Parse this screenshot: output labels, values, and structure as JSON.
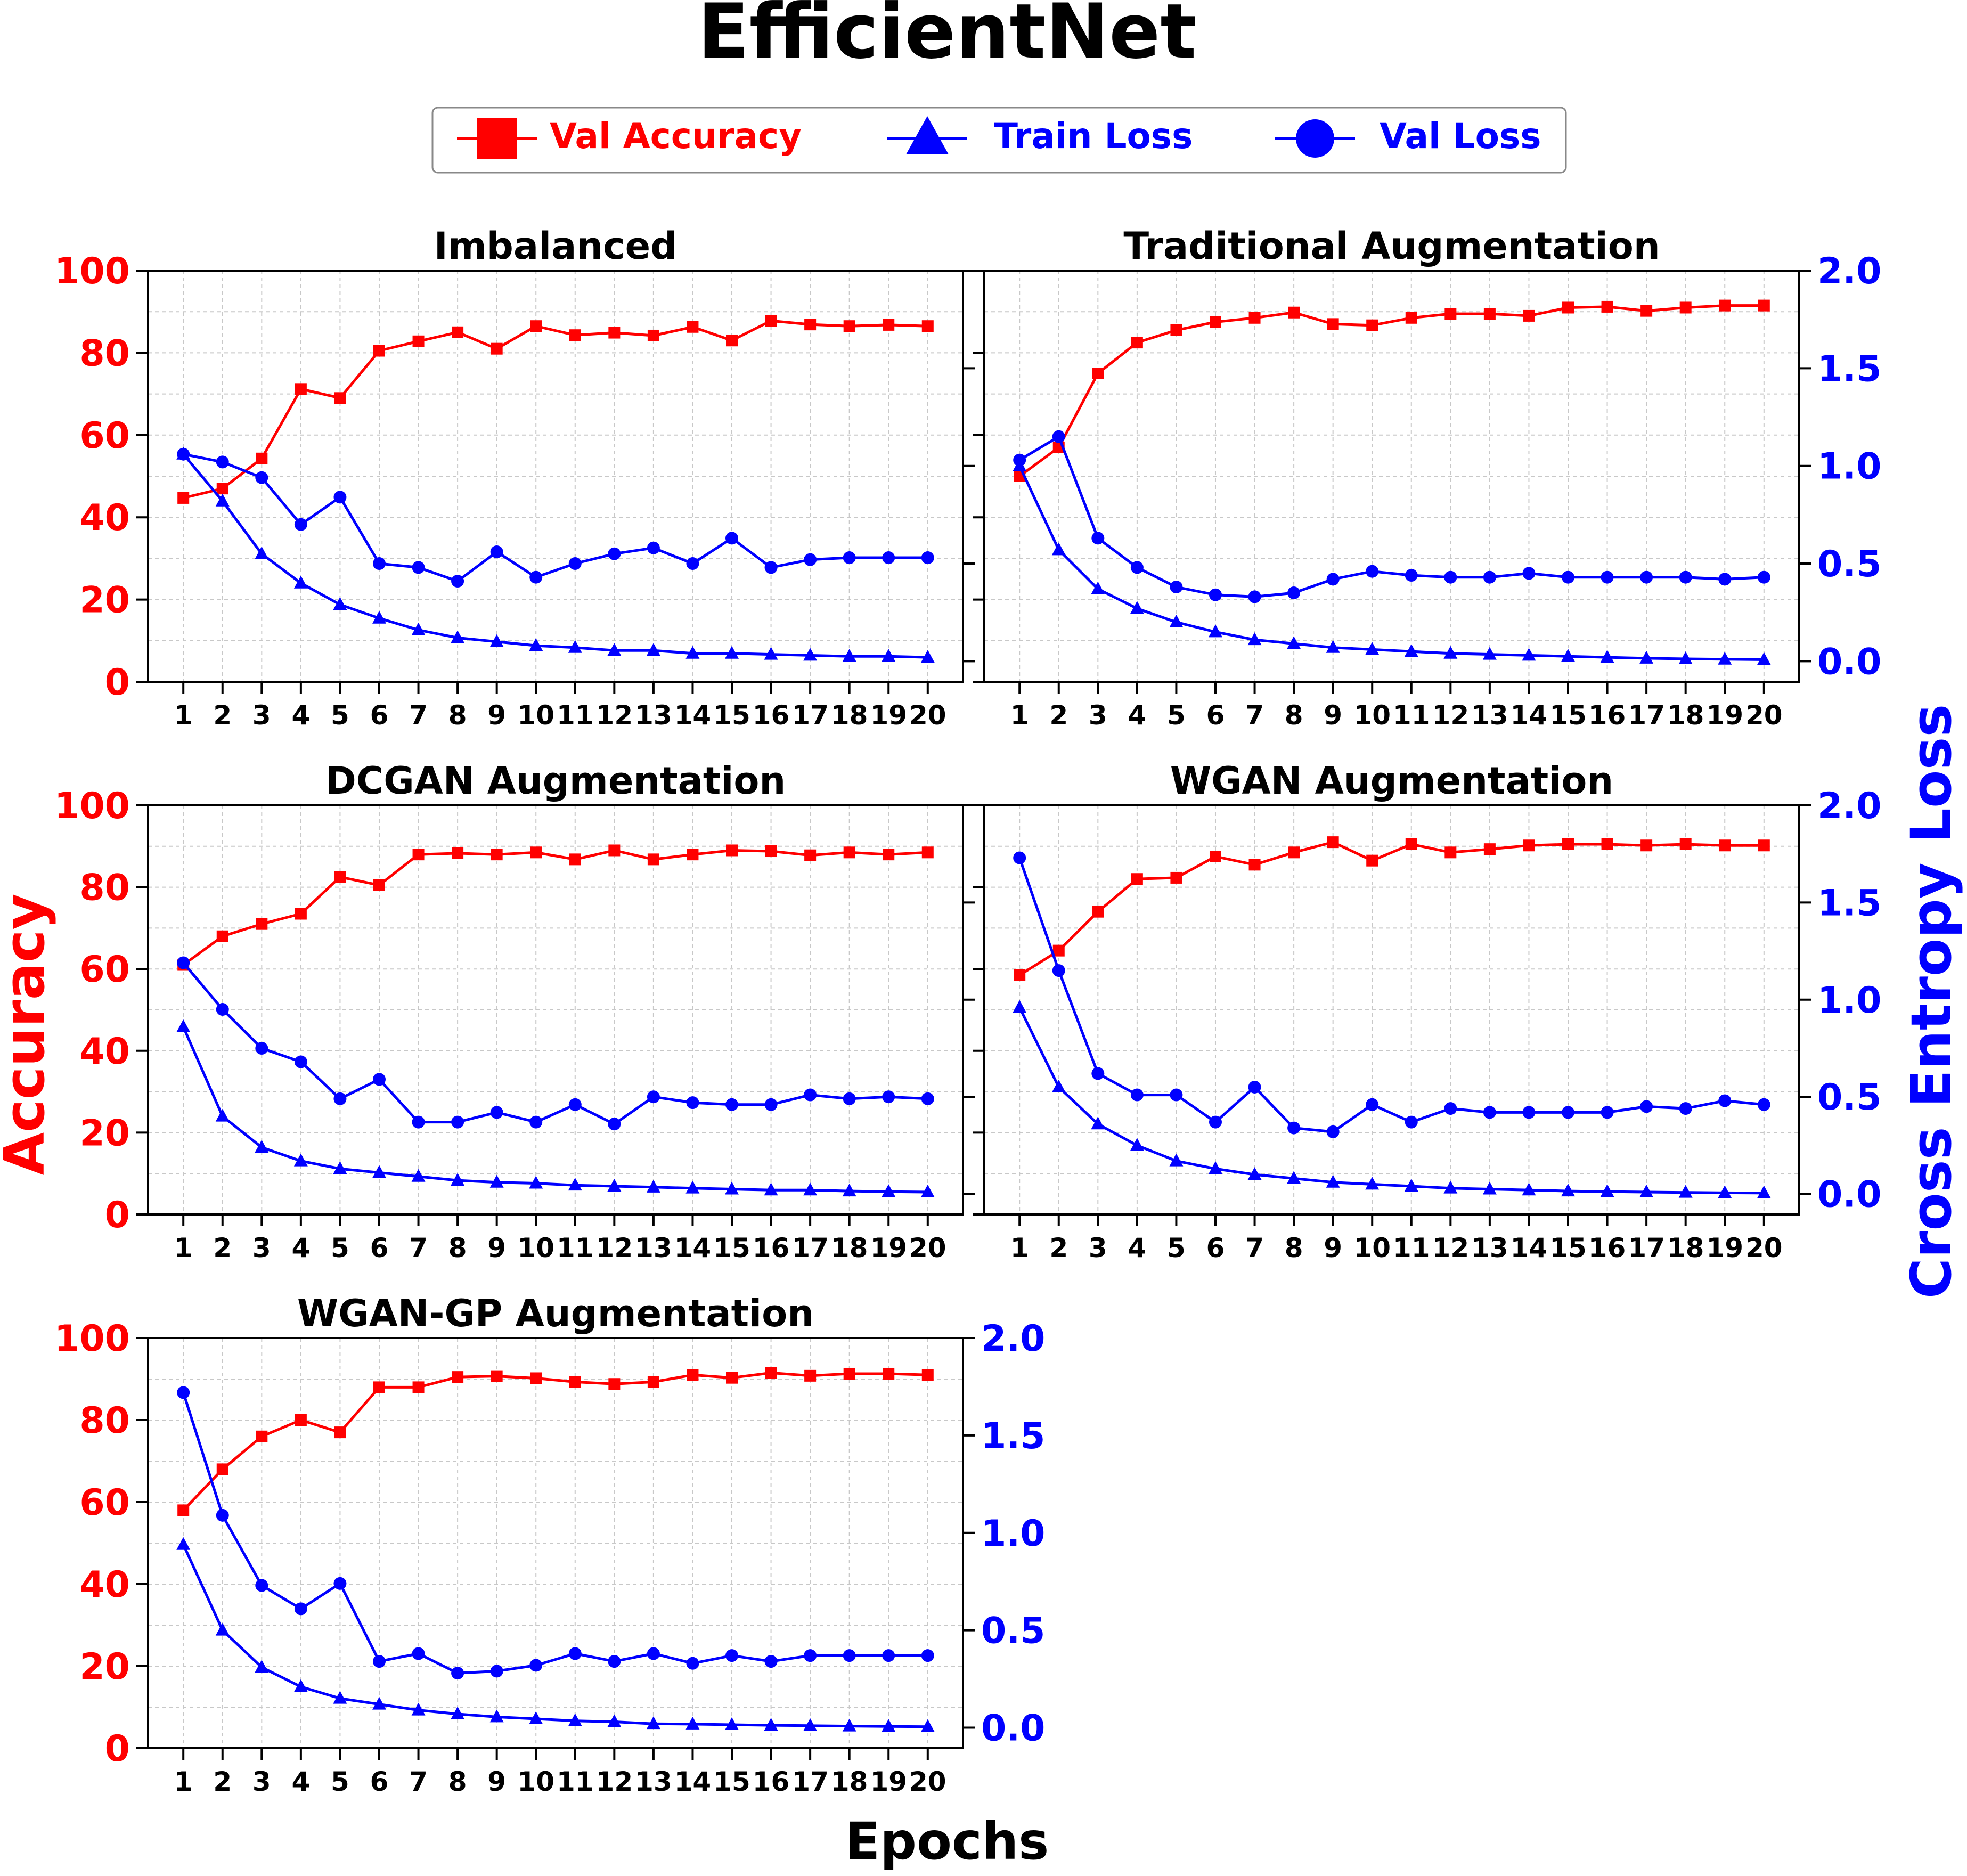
{
  "figure": {
    "title": "EfficientNet",
    "xlabel": "Epochs",
    "ylabel_left": "Accuracy",
    "ylabel_right": "Cross Entropy Loss"
  },
  "legend": {
    "placement": "top-center",
    "entries": [
      {
        "label": "Val Accuracy",
        "color": "#ff0000",
        "marker": "square"
      },
      {
        "label": "Train Loss",
        "color": "#0000ff",
        "marker": "triangle"
      },
      {
        "label": "Val Loss",
        "color": "#0000ff",
        "marker": "circle"
      }
    ]
  },
  "colors": {
    "accuracy": "#ff0000",
    "loss": "#0000ff",
    "text": "#000000",
    "grid": "#b0b0b0"
  },
  "chart_data": [
    {
      "type": "line",
      "title": "Imbalanced",
      "x": [
        1,
        2,
        3,
        4,
        5,
        6,
        7,
        8,
        9,
        10,
        11,
        12,
        13,
        14,
        15,
        16,
        17,
        18,
        19,
        20
      ],
      "ylim_left": [
        0,
        100
      ],
      "ylim_right": [
        0,
        2.0
      ],
      "left_ticks_shown": true,
      "right_ticks_shown": false,
      "grid": true,
      "series": [
        {
          "name": "Val Accuracy",
          "axis": "left",
          "values": [
            44.7,
            47.0,
            54.3,
            71.2,
            69.0,
            80.5,
            82.8,
            85.0,
            81.0,
            86.5,
            84.3,
            84.9,
            84.2,
            86.3,
            83.0,
            87.8,
            86.9,
            86.5,
            86.8,
            86.5
          ]
        },
        {
          "name": "Train Loss",
          "axis": "right",
          "values": [
            1.06,
            0.82,
            0.55,
            0.4,
            0.29,
            0.22,
            0.16,
            0.12,
            0.1,
            0.08,
            0.07,
            0.055,
            0.055,
            0.04,
            0.04,
            0.035,
            0.03,
            0.025,
            0.025,
            0.02
          ]
        },
        {
          "name": "Val Loss",
          "axis": "right",
          "values": [
            1.06,
            1.02,
            0.94,
            0.7,
            0.84,
            0.5,
            0.48,
            0.41,
            0.56,
            0.43,
            0.5,
            0.55,
            0.58,
            0.5,
            0.63,
            0.48,
            0.52,
            0.53,
            0.53,
            0.53
          ]
        }
      ]
    },
    {
      "type": "line",
      "title": "Traditional Augmentation",
      "x": [
        1,
        2,
        3,
        4,
        5,
        6,
        7,
        8,
        9,
        10,
        11,
        12,
        13,
        14,
        15,
        16,
        17,
        18,
        19,
        20
      ],
      "ylim_left": [
        0,
        100
      ],
      "ylim_right": [
        0,
        2.0
      ],
      "left_ticks_shown": false,
      "right_ticks_shown": true,
      "grid": true,
      "series": [
        {
          "name": "Val Accuracy",
          "axis": "left",
          "values": [
            50.0,
            57.0,
            75.0,
            82.5,
            85.5,
            87.5,
            88.5,
            89.8,
            87.0,
            86.7,
            88.5,
            89.5,
            89.5,
            89.0,
            91.0,
            91.2,
            90.2,
            91.0,
            91.5,
            91.5
          ]
        },
        {
          "name": "Train Loss",
          "axis": "right",
          "values": [
            1.0,
            0.57,
            0.37,
            0.27,
            0.2,
            0.15,
            0.11,
            0.09,
            0.07,
            0.06,
            0.05,
            0.04,
            0.035,
            0.03,
            0.025,
            0.02,
            0.015,
            0.012,
            0.01,
            0.008
          ]
        },
        {
          "name": "Val Loss",
          "axis": "right",
          "values": [
            1.03,
            1.15,
            0.63,
            0.48,
            0.38,
            0.34,
            0.33,
            0.35,
            0.42,
            0.46,
            0.44,
            0.43,
            0.43,
            0.45,
            0.43,
            0.43,
            0.43,
            0.43,
            0.42,
            0.43
          ]
        }
      ]
    },
    {
      "type": "line",
      "title": "DCGAN Augmentation",
      "x": [
        1,
        2,
        3,
        4,
        5,
        6,
        7,
        8,
        9,
        10,
        11,
        12,
        13,
        14,
        15,
        16,
        17,
        18,
        19,
        20
      ],
      "ylim_left": [
        0,
        100
      ],
      "ylim_right": [
        0,
        2.0
      ],
      "left_ticks_shown": true,
      "right_ticks_shown": false,
      "grid": true,
      "series": [
        {
          "name": "Val Accuracy",
          "axis": "left",
          "values": [
            61.0,
            68.0,
            71.0,
            73.5,
            82.5,
            80.5,
            88.0,
            88.3,
            88.0,
            88.5,
            86.8,
            89.0,
            86.8,
            88.0,
            89.0,
            88.8,
            87.8,
            88.5,
            88.0,
            88.5
          ]
        },
        {
          "name": "Train Loss",
          "axis": "right",
          "values": [
            0.86,
            0.4,
            0.24,
            0.17,
            0.13,
            0.11,
            0.09,
            0.07,
            0.06,
            0.055,
            0.045,
            0.04,
            0.035,
            0.03,
            0.025,
            0.02,
            0.02,
            0.015,
            0.012,
            0.01
          ]
        },
        {
          "name": "Val Loss",
          "axis": "right",
          "values": [
            1.19,
            0.95,
            0.75,
            0.68,
            0.49,
            0.59,
            0.37,
            0.37,
            0.42,
            0.37,
            0.46,
            0.36,
            0.5,
            0.47,
            0.46,
            0.46,
            0.51,
            0.49,
            0.5,
            0.49
          ]
        }
      ]
    },
    {
      "type": "line",
      "title": "WGAN Augmentation",
      "x": [
        1,
        2,
        3,
        4,
        5,
        6,
        7,
        8,
        9,
        10,
        11,
        12,
        13,
        14,
        15,
        16,
        17,
        18,
        19,
        20
      ],
      "ylim_left": [
        0,
        100
      ],
      "ylim_right": [
        0,
        2.0
      ],
      "left_ticks_shown": false,
      "right_ticks_shown": true,
      "grid": true,
      "series": [
        {
          "name": "Val Accuracy",
          "axis": "left",
          "values": [
            58.5,
            64.5,
            74.0,
            82.0,
            82.3,
            87.5,
            85.5,
            88.5,
            91.0,
            86.5,
            90.5,
            88.5,
            89.3,
            90.2,
            90.5,
            90.5,
            90.2,
            90.5,
            90.2,
            90.2
          ]
        },
        {
          "name": "Train Loss",
          "axis": "right",
          "values": [
            0.96,
            0.55,
            0.36,
            0.25,
            0.17,
            0.13,
            0.1,
            0.08,
            0.06,
            0.05,
            0.04,
            0.03,
            0.025,
            0.02,
            0.015,
            0.012,
            0.01,
            0.008,
            0.006,
            0.005
          ]
        },
        {
          "name": "Val Loss",
          "axis": "right",
          "values": [
            1.73,
            1.15,
            0.62,
            0.51,
            0.51,
            0.37,
            0.55,
            0.34,
            0.32,
            0.46,
            0.37,
            0.44,
            0.42,
            0.42,
            0.42,
            0.42,
            0.45,
            0.44,
            0.48,
            0.46
          ]
        }
      ]
    },
    {
      "type": "line",
      "title": "WGAN-GP Augmentation",
      "x": [
        1,
        2,
        3,
        4,
        5,
        6,
        7,
        8,
        9,
        10,
        11,
        12,
        13,
        14,
        15,
        16,
        17,
        18,
        19,
        20
      ],
      "ylim_left": [
        0,
        100
      ],
      "ylim_right": [
        0,
        2.0
      ],
      "left_ticks_shown": true,
      "right_ticks_shown": true,
      "grid": true,
      "series": [
        {
          "name": "Val Accuracy",
          "axis": "left",
          "values": [
            58.0,
            68.0,
            76.0,
            80.0,
            77.0,
            88.0,
            88.0,
            90.5,
            90.7,
            90.2,
            89.3,
            88.8,
            89.3,
            91.0,
            90.3,
            91.5,
            90.8,
            91.3,
            91.3,
            91.0
          ]
        },
        {
          "name": "Train Loss",
          "axis": "right",
          "values": [
            0.94,
            0.5,
            0.31,
            0.21,
            0.15,
            0.12,
            0.09,
            0.07,
            0.055,
            0.045,
            0.035,
            0.03,
            0.02,
            0.018,
            0.015,
            0.012,
            0.01,
            0.008,
            0.006,
            0.005
          ]
        },
        {
          "name": "Val Loss",
          "axis": "right",
          "values": [
            1.72,
            1.09,
            0.73,
            0.61,
            0.74,
            0.34,
            0.38,
            0.28,
            0.29,
            0.32,
            0.38,
            0.34,
            0.38,
            0.33,
            0.37,
            0.34,
            0.37,
            0.37,
            0.37,
            0.37
          ]
        }
      ]
    }
  ],
  "axis_ticks": {
    "left": [
      "0",
      "20",
      "40",
      "60",
      "80",
      "100"
    ],
    "right": [
      "0.0",
      "0.5",
      "1.0",
      "1.5",
      "2.0"
    ],
    "x": [
      "1",
      "2",
      "3",
      "4",
      "5",
      "6",
      "7",
      "8",
      "9",
      "10",
      "11",
      "12",
      "13",
      "14",
      "15",
      "16",
      "17",
      "18",
      "19",
      "20"
    ]
  }
}
